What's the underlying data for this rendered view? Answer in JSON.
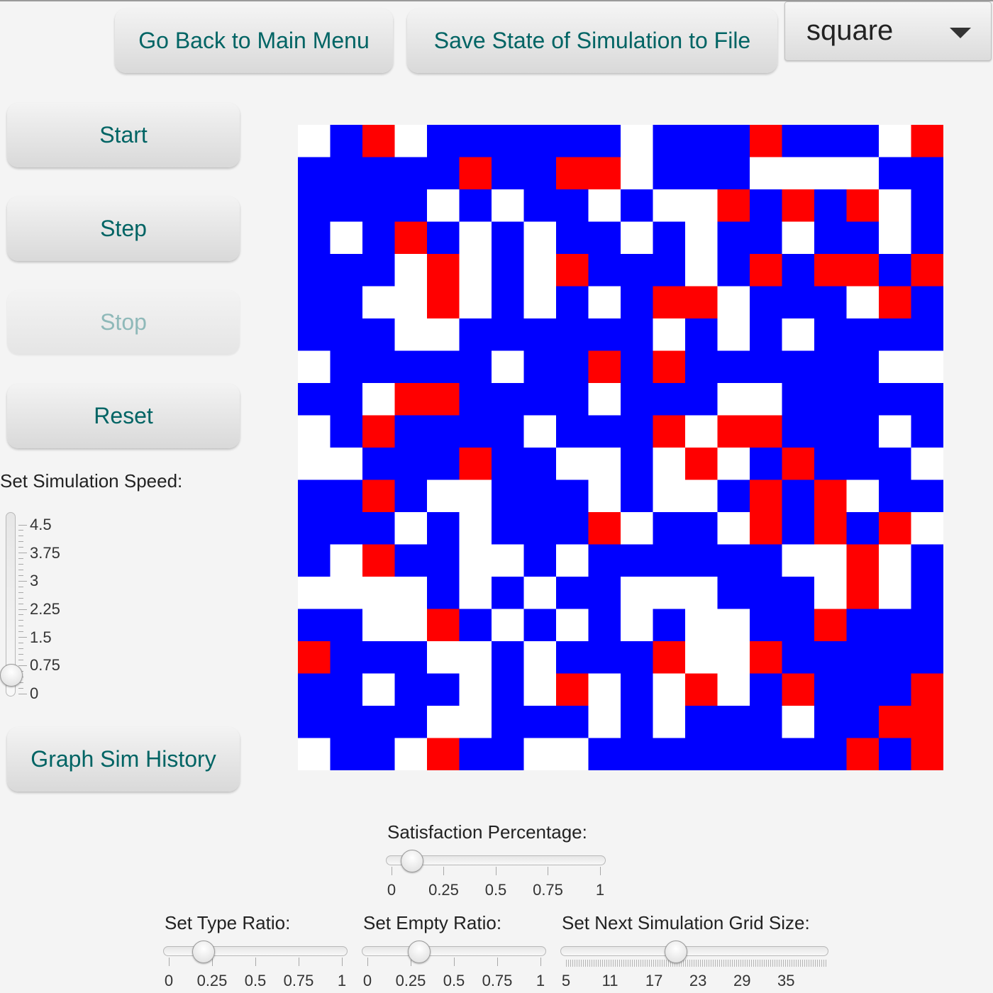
{
  "top_buttons": {
    "main_menu": "Go Back to Main Menu",
    "save_state": "Save State of Simulation to File"
  },
  "shape_select": {
    "value": "square"
  },
  "controls": {
    "start": "Start",
    "step": "Step",
    "stop": "Stop",
    "reset": "Reset",
    "graph": "Graph Sim History"
  },
  "speed": {
    "label": "Set Simulation Speed:",
    "ticks": [
      "4.5",
      "3.75",
      "3",
      "2.25",
      "1.5",
      "0.75",
      "0"
    ],
    "value": 0.5,
    "min": 0,
    "max": 5
  },
  "satisfaction": {
    "label": "Satisfaction Percentage:",
    "ticks": [
      "0",
      "0.25",
      "0.5",
      "0.75",
      "1"
    ],
    "value": 0.1
  },
  "type_ratio": {
    "label": "Set Type Ratio:",
    "ticks": [
      "0",
      "0.25",
      "0.5",
      "0.75",
      "1"
    ],
    "value": 0.2
  },
  "empty_ratio": {
    "label": "Set Empty Ratio:",
    "ticks": [
      "0",
      "0.25",
      "0.5",
      "0.75",
      "1"
    ],
    "value": 0.3
  },
  "grid_size": {
    "label": "Set Next Simulation Grid Size:",
    "ticks": [
      "5",
      "11",
      "17",
      "23",
      "29",
      "35"
    ],
    "value": 20,
    "min": 5,
    "max": 40
  },
  "colors": {
    "blue": "#0000ff",
    "red": "#ff0000",
    "empty": "#ffffff",
    "button_text": "#006464"
  },
  "grid": {
    "rows": 20,
    "cols": 20,
    "legend": {
      "B": "blue agent",
      "R": "red agent",
      "W": "empty"
    },
    "cells": [
      "WBRWBBBBBBWBBBRBBBWR",
      "BBBBBRBBRRWBBBWWWWBB",
      "BBBBWBWBBWBWWRBRBRWB",
      "BWBRBWBWBBWBWBBWBBWB",
      "BBBWRWBWRBBBWBRBRRBR",
      "BBWWRWBWBWBRRWBBBWRB",
      "BBBWWBBBBBBWBWBWBBBB",
      "WBBBBBWBBRBRBBBBBBWW",
      "BBWRRBBBBWBBBWWBBBBB",
      "WBRBBBBWBBBRWRRBBBWB",
      "WWBBBRBBWWBWRWBRBBBW",
      "BBRBWWBBBWBWWBRBRWBB",
      "BBBWBWBBBRWBBWRBRBRW",
      "BWRBBWWBWBBBBBBWWRWB",
      "WWWWBWBWBBWWWBBBWRWB",
      "BBWWRBWBWBWBWWBBRBBB",
      "RBBBWWBWBBBRWWRBBBBB",
      "BBWBBWBWRWBWRWBRBBBR",
      "BBBBWWBBBWBWBBBWBBRR",
      "WBBWRBBWWBBBBBBBBRBR"
    ]
  }
}
